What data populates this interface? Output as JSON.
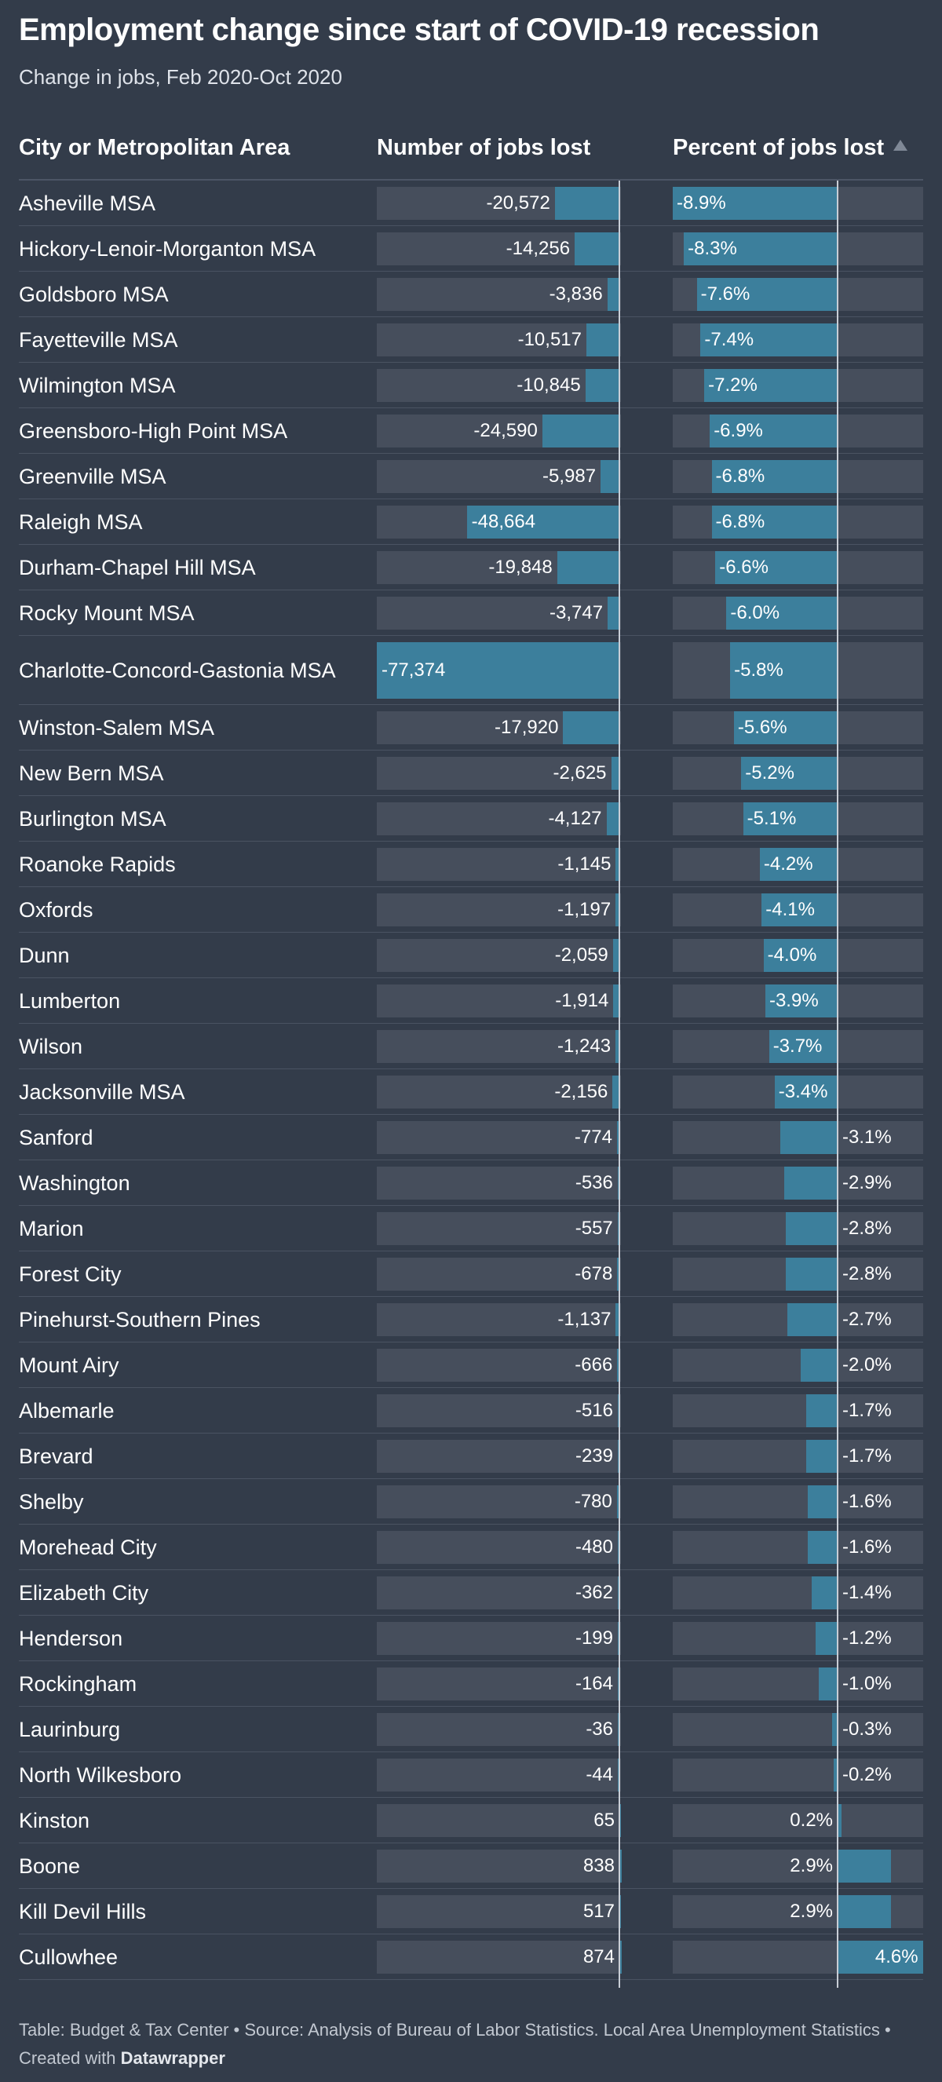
{
  "title": "Employment change since start of COVID-19 recession",
  "subtitle": "Change in jobs, Feb 2020-Oct 2020",
  "columns": {
    "area": "City or Metropolitan Area",
    "jobs": "Number of jobs lost",
    "percent": "Percent of jobs lost"
  },
  "sort_icon": "sort-ascending-triangle-icon",
  "footer": {
    "text": "Table: Budget & Tax Center • Source: Analysis of Bureau of Labor Statistics. Local Area Unemployment Statistics • Created with ",
    "brand": "Datawrapper"
  },
  "colors": {
    "background": "#333c4a",
    "bar": "#3c7f9c",
    "bar_track": "#464e5c"
  },
  "chart_data": {
    "type": "table",
    "jobs_range": [
      -77374,
      874
    ],
    "percent_range": [
      -8.9,
      4.6
    ],
    "rows": [
      {
        "area": "Asheville MSA",
        "jobs": -20572,
        "jobs_label": "-20,572",
        "percent": -8.9,
        "percent_label": "-8.9%"
      },
      {
        "area": "Hickory-Lenoir-Morganton MSA",
        "jobs": -14256,
        "jobs_label": "-14,256",
        "percent": -8.3,
        "percent_label": "-8.3%"
      },
      {
        "area": "Goldsboro MSA",
        "jobs": -3836,
        "jobs_label": "-3,836",
        "percent": -7.6,
        "percent_label": "-7.6%"
      },
      {
        "area": "Fayetteville MSA",
        "jobs": -10517,
        "jobs_label": "-10,517",
        "percent": -7.4,
        "percent_label": "-7.4%"
      },
      {
        "area": "Wilmington MSA",
        "jobs": -10845,
        "jobs_label": "-10,845",
        "percent": -7.2,
        "percent_label": "-7.2%"
      },
      {
        "area": "Greensboro-High Point MSA",
        "jobs": -24590,
        "jobs_label": "-24,590",
        "percent": -6.9,
        "percent_label": "-6.9%"
      },
      {
        "area": "Greenville MSA",
        "jobs": -5987,
        "jobs_label": "-5,987",
        "percent": -6.8,
        "percent_label": "-6.8%"
      },
      {
        "area": "Raleigh MSA",
        "jobs": -48664,
        "jobs_label": "-48,664",
        "percent": -6.8,
        "percent_label": "-6.8%"
      },
      {
        "area": "Durham-Chapel Hill MSA",
        "jobs": -19848,
        "jobs_label": "-19,848",
        "percent": -6.6,
        "percent_label": "-6.6%"
      },
      {
        "area": "Rocky Mount MSA",
        "jobs": -3747,
        "jobs_label": "-3,747",
        "percent": -6.0,
        "percent_label": "-6.0%"
      },
      {
        "area": "Charlotte-Concord-Gastonia MSA",
        "jobs": -77374,
        "jobs_label": "-77,374",
        "percent": -5.8,
        "percent_label": "-5.8%"
      },
      {
        "area": "Winston-Salem MSA",
        "jobs": -17920,
        "jobs_label": "-17,920",
        "percent": -5.6,
        "percent_label": "-5.6%"
      },
      {
        "area": "New Bern MSA",
        "jobs": -2625,
        "jobs_label": "-2,625",
        "percent": -5.2,
        "percent_label": "-5.2%"
      },
      {
        "area": "Burlington MSA",
        "jobs": -4127,
        "jobs_label": "-4,127",
        "percent": -5.1,
        "percent_label": "-5.1%"
      },
      {
        "area": "Roanoke Rapids",
        "jobs": -1145,
        "jobs_label": "-1,145",
        "percent": -4.2,
        "percent_label": "-4.2%"
      },
      {
        "area": "Oxfords",
        "jobs": -1197,
        "jobs_label": "-1,197",
        "percent": -4.1,
        "percent_label": "-4.1%"
      },
      {
        "area": "Dunn",
        "jobs": -2059,
        "jobs_label": "-2,059",
        "percent": -4.0,
        "percent_label": "-4.0%"
      },
      {
        "area": "Lumberton",
        "jobs": -1914,
        "jobs_label": "-1,914",
        "percent": -3.9,
        "percent_label": "-3.9%"
      },
      {
        "area": "Wilson",
        "jobs": -1243,
        "jobs_label": "-1,243",
        "percent": -3.7,
        "percent_label": "-3.7%"
      },
      {
        "area": "Jacksonville MSA",
        "jobs": -2156,
        "jobs_label": "-2,156",
        "percent": -3.4,
        "percent_label": "-3.4%"
      },
      {
        "area": "Sanford",
        "jobs": -774,
        "jobs_label": "-774",
        "percent": -3.1,
        "percent_label": "-3.1%"
      },
      {
        "area": "Washington",
        "jobs": -536,
        "jobs_label": "-536",
        "percent": -2.9,
        "percent_label": "-2.9%"
      },
      {
        "area": "Marion",
        "jobs": -557,
        "jobs_label": "-557",
        "percent": -2.8,
        "percent_label": "-2.8%"
      },
      {
        "area": "Forest City",
        "jobs": -678,
        "jobs_label": "-678",
        "percent": -2.8,
        "percent_label": "-2.8%"
      },
      {
        "area": "Pinehurst-Southern Pines",
        "jobs": -1137,
        "jobs_label": "-1,137",
        "percent": -2.7,
        "percent_label": "-2.7%"
      },
      {
        "area": "Mount Airy",
        "jobs": -666,
        "jobs_label": "-666",
        "percent": -2.0,
        "percent_label": "-2.0%"
      },
      {
        "area": "Albemarle",
        "jobs": -516,
        "jobs_label": "-516",
        "percent": -1.7,
        "percent_label": "-1.7%"
      },
      {
        "area": "Brevard",
        "jobs": -239,
        "jobs_label": "-239",
        "percent": -1.7,
        "percent_label": "-1.7%"
      },
      {
        "area": "Shelby",
        "jobs": -780,
        "jobs_label": "-780",
        "percent": -1.6,
        "percent_label": "-1.6%"
      },
      {
        "area": "Morehead City",
        "jobs": -480,
        "jobs_label": "-480",
        "percent": -1.6,
        "percent_label": "-1.6%"
      },
      {
        "area": "Elizabeth City",
        "jobs": -362,
        "jobs_label": "-362",
        "percent": -1.4,
        "percent_label": "-1.4%"
      },
      {
        "area": "Henderson",
        "jobs": -199,
        "jobs_label": "-199",
        "percent": -1.2,
        "percent_label": "-1.2%"
      },
      {
        "area": "Rockingham",
        "jobs": -164,
        "jobs_label": "-164",
        "percent": -1.0,
        "percent_label": "-1.0%"
      },
      {
        "area": "Laurinburg",
        "jobs": -36,
        "jobs_label": "-36",
        "percent": -0.3,
        "percent_label": "-0.3%"
      },
      {
        "area": "North Wilkesboro",
        "jobs": -44,
        "jobs_label": "-44",
        "percent": -0.2,
        "percent_label": "-0.2%"
      },
      {
        "area": "Kinston",
        "jobs": 65,
        "jobs_label": "65",
        "percent": 0.2,
        "percent_label": "0.2%"
      },
      {
        "area": "Boone",
        "jobs": 838,
        "jobs_label": "838",
        "percent": 2.9,
        "percent_label": "2.9%"
      },
      {
        "area": "Kill Devil Hills",
        "jobs": 517,
        "jobs_label": "517",
        "percent": 2.9,
        "percent_label": "2.9%"
      },
      {
        "area": "Cullowhee",
        "jobs": 874,
        "jobs_label": "874",
        "percent": 4.6,
        "percent_label": "4.6%"
      }
    ]
  }
}
